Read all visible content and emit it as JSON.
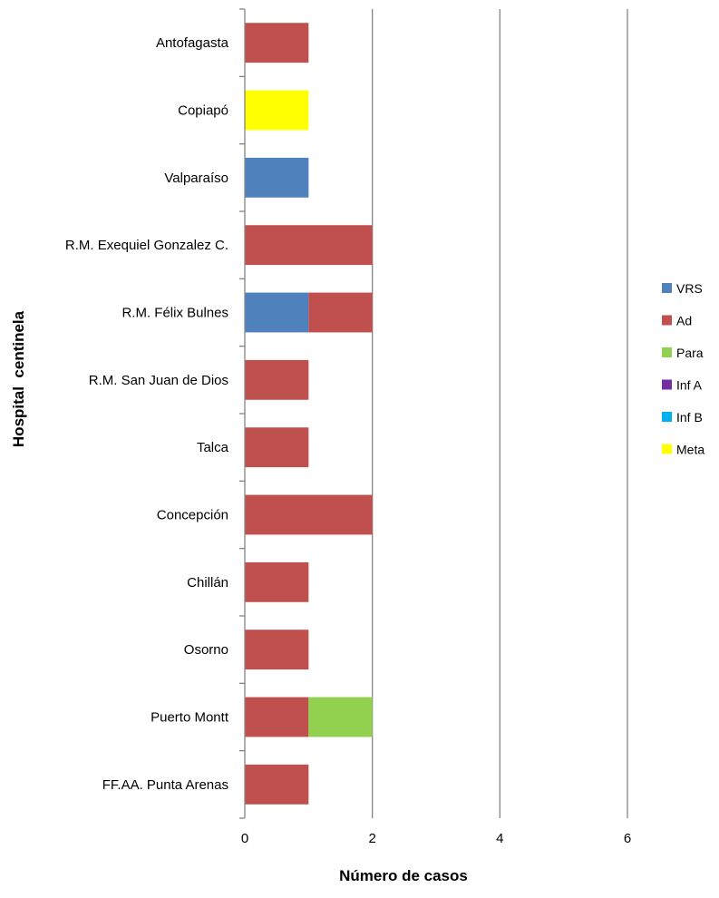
{
  "chart_data": {
    "type": "bar",
    "orientation": "horizontal",
    "stacked": true,
    "categories": [
      "Antofagasta",
      "Copiapó",
      "Valparaíso",
      "R.M. Exequiel Gonzalez C.",
      "R.M. Félix Bulnes",
      "R.M. San Juan de Dios",
      "Talca",
      "Concepción",
      "Chillán",
      "Osorno",
      "Puerto Montt",
      "FF.AA. Punta Arenas"
    ],
    "series": [
      {
        "name": "VRS",
        "color": "#4F81BD",
        "values": [
          0,
          0,
          1,
          0,
          1,
          0,
          0,
          0,
          0,
          0,
          0,
          0
        ]
      },
      {
        "name": "Ad",
        "color": "#C0504D",
        "values": [
          1,
          0,
          0,
          2,
          1,
          1,
          1,
          2,
          1,
          1,
          1,
          1
        ]
      },
      {
        "name": "Para",
        "color": "#92D050",
        "values": [
          0,
          0,
          0,
          0,
          0,
          0,
          0,
          0,
          0,
          0,
          1,
          0
        ]
      },
      {
        "name": "Inf A",
        "color": "#7030A0",
        "values": [
          0,
          0,
          0,
          0,
          0,
          0,
          0,
          0,
          0,
          0,
          0,
          0
        ]
      },
      {
        "name": "Inf B",
        "color": "#00B0F0",
        "values": [
          0,
          0,
          0,
          0,
          0,
          0,
          0,
          0,
          0,
          0,
          0,
          0
        ]
      },
      {
        "name": "Meta",
        "color": "#FFFF00",
        "values": [
          0,
          1,
          0,
          0,
          0,
          0,
          0,
          0,
          0,
          0,
          0,
          0
        ]
      }
    ],
    "xlabel": "Número de casos",
    "ylabel": "Hospital  centinela",
    "xlim": [
      0,
      6
    ],
    "xticks": [
      0,
      2,
      4,
      6
    ],
    "grid": "vertical",
    "legend_position": "right"
  }
}
